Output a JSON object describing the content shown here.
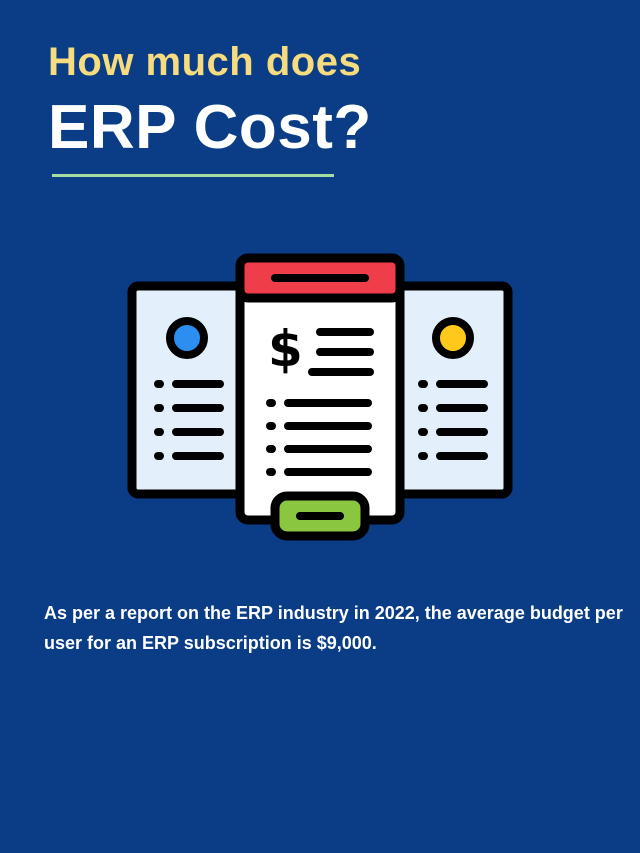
{
  "header": {
    "subtitle": "How much does",
    "title": "ERP Cost?"
  },
  "illustration": {
    "icon": "invoice-price-list-icon",
    "symbol": "$",
    "colors": {
      "background": "#0a3d86",
      "accent_red": "#ef3e4a",
      "accent_green": "#8ac63f",
      "dot_blue": "#2b8ef0",
      "dot_yellow": "#ffc81a",
      "panel_light": "#e3f0fc",
      "panel_white": "#ffffff"
    }
  },
  "body": {
    "text": "As per a report on the ERP industry in 2022, the average budget per user for an ERP subscription is $9,000."
  }
}
